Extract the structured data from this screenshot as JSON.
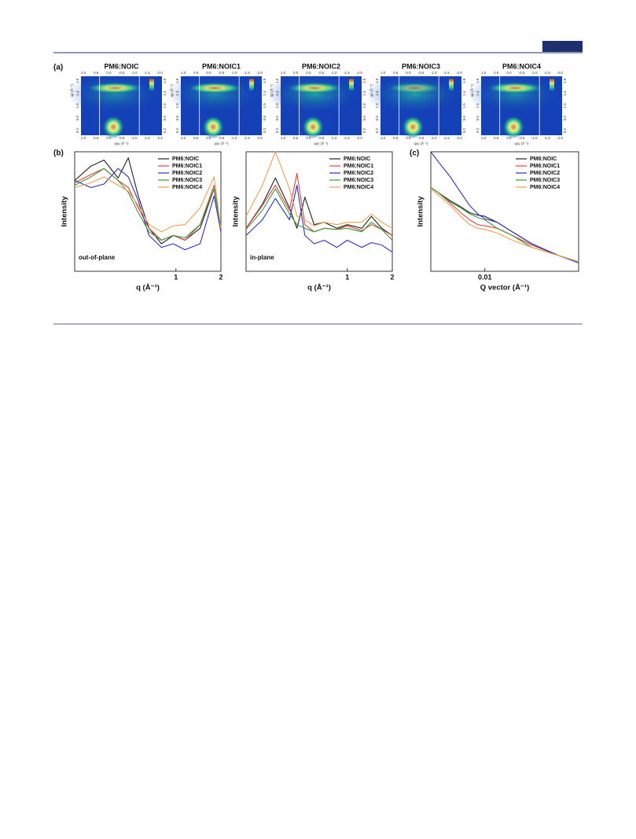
{
  "figure_a": {
    "panel_label": "(a)",
    "titles": [
      "PM6:NOIC",
      "PM6:NOIC1",
      "PM6:NOIC2",
      "PM6:NOIC3",
      "PM6:NOIC4"
    ],
    "x_ticks": [
      "1.0",
      "0.5",
      "0.0",
      "-0.5",
      "-1.0",
      "-1.5",
      "-2.0"
    ],
    "y_ticks": [
      "0.2",
      "0.6",
      "1.0",
      "1.4",
      "1.8"
    ],
    "x_label": "qxy (Å⁻¹)",
    "y_label": "qz (Å⁻¹)"
  },
  "chart_data": [
    {
      "type": "line",
      "panel_label": "(b)",
      "annotation": "out-of-plane",
      "xlabel": "q (Å⁻¹)",
      "ylabel": "Intensity",
      "xlog": true,
      "xlim": [
        0.21,
        2
      ],
      "ylim": [
        0,
        100
      ],
      "xticks": [
        1,
        2
      ],
      "legend": "top-right",
      "x": [
        0.21,
        0.27,
        0.33,
        0.41,
        0.48,
        0.56,
        0.66,
        0.8,
        0.96,
        1.15,
        1.45,
        1.8,
        2.0
      ],
      "series": [
        {
          "name": "PM6:NOIC",
          "color": "#222222",
          "values": [
            76,
            88,
            93,
            78,
            95,
            63,
            36,
            23,
            30,
            26,
            36,
            69,
            36
          ]
        },
        {
          "name": "PM6:NOIC1",
          "color": "#e8413b",
          "values": [
            74,
            81,
            86,
            76,
            70,
            53,
            36,
            26,
            30,
            26,
            39,
            72,
            36
          ]
        },
        {
          "name": "PM6:NOIC2",
          "color": "#2b2fc7",
          "values": [
            76,
            70,
            73,
            86,
            79,
            59,
            30,
            20,
            23,
            18,
            23,
            63,
            33
          ]
        },
        {
          "name": "PM6:NOIC3",
          "color": "#3a9a3a",
          "values": [
            72,
            79,
            86,
            76,
            66,
            49,
            33,
            26,
            30,
            28,
            39,
            69,
            36
          ]
        },
        {
          "name": "PM6:NOIC4",
          "color": "#f0a050",
          "values": [
            70,
            74,
            79,
            72,
            67,
            55,
            39,
            33,
            38,
            39,
            53,
            79,
            36
          ]
        }
      ]
    },
    {
      "type": "line",
      "annotation": "in-plane",
      "xlabel": "q (Å⁻¹)",
      "ylabel": "Intensity",
      "xlog": true,
      "xlim": [
        0.21,
        2
      ],
      "ylim": [
        0,
        100
      ],
      "xticks": [
        1,
        2
      ],
      "legend": "top-right",
      "x": [
        0.21,
        0.27,
        0.33,
        0.41,
        0.46,
        0.52,
        0.6,
        0.7,
        0.85,
        1.0,
        1.25,
        1.45,
        1.7,
        2.0
      ],
      "series": [
        {
          "name": "PM6:NOIC",
          "color": "#222222",
          "values": [
            36,
            56,
            78,
            53,
            36,
            62,
            39,
            41,
            36,
            39,
            36,
            46,
            36,
            30
          ]
        },
        {
          "name": "PM6:NOIC1",
          "color": "#e8413b",
          "values": [
            36,
            55,
            72,
            51,
            82,
            39,
            33,
            36,
            35,
            38,
            34,
            39,
            35,
            30
          ]
        },
        {
          "name": "PM6:NOIC2",
          "color": "#2b2fc7",
          "values": [
            30,
            43,
            61,
            43,
            72,
            30,
            23,
            26,
            20,
            26,
            20,
            24,
            22,
            16
          ]
        },
        {
          "name": "PM6:NOIC3",
          "color": "#3a9a3a",
          "values": [
            35,
            51,
            69,
            48,
            39,
            36,
            33,
            36,
            35,
            36,
            33,
            41,
            35,
            26
          ]
        },
        {
          "name": "PM6:NOIC4",
          "color": "#f0a050",
          "values": [
            46,
            72,
            100,
            69,
            46,
            43,
            38,
            41,
            39,
            41,
            41,
            48,
            41,
            36
          ]
        }
      ]
    },
    {
      "type": "line",
      "panel_label": "(c)",
      "xlabel": "Q vector (Å⁻¹)",
      "ylabel": "Intensity",
      "xlog": true,
      "xlim": [
        0.0045,
        0.04
      ],
      "ylim": [
        0,
        100
      ],
      "xticks": [
        0.01
      ],
      "legend": "top-right",
      "x": [
        0.0045,
        0.005,
        0.006,
        0.007,
        0.008,
        0.009,
        0.01,
        0.012,
        0.015,
        0.02,
        0.03,
        0.04
      ],
      "series": [
        {
          "name": "PM6:NOIC",
          "color": "#222222",
          "values": [
            70,
            66,
            59,
            54,
            49,
            47,
            46,
            41,
            33,
            23,
            13,
            8
          ]
        },
        {
          "name": "PM6:NOIC1",
          "color": "#e8413b",
          "values": [
            70,
            66,
            57,
            49,
            43,
            39,
            38,
            36,
            30,
            22,
            13,
            8
          ]
        },
        {
          "name": "PM6:NOIC2",
          "color": "#2b2fc7",
          "values": [
            100,
            92,
            79,
            66,
            55,
            48,
            44,
            41,
            33,
            23,
            13,
            7
          ]
        },
        {
          "name": "PM6:NOIC3",
          "color": "#3a9a3a",
          "values": [
            70,
            66,
            58,
            53,
            48,
            45,
            43,
            36,
            30,
            20,
            13,
            8
          ]
        },
        {
          "name": "PM6:NOIC4",
          "color": "#f0a050",
          "values": [
            69,
            64,
            55,
            46,
            39,
            36,
            35,
            32,
            26,
            20,
            13,
            8
          ]
        }
      ]
    }
  ]
}
